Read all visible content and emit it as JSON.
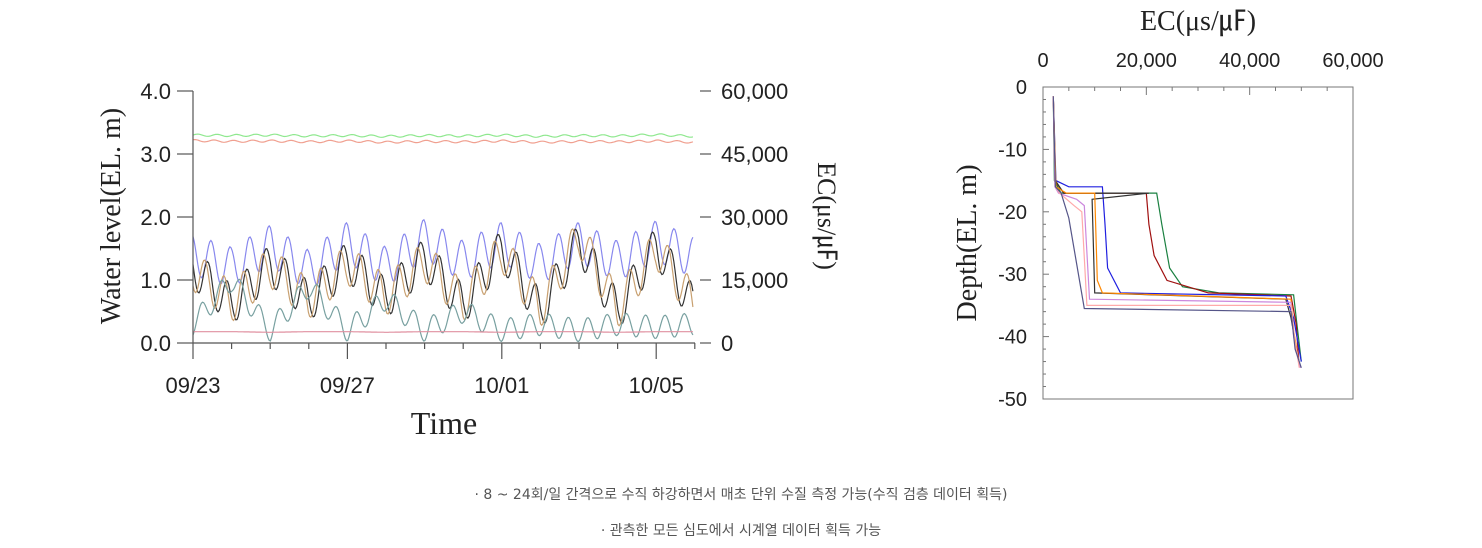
{
  "chart_data": [
    {
      "type": "line",
      "xlabel": "Time",
      "ylabel": "Water level(EL. m)",
      "y2label": "EC(μs/㎌)",
      "x_range": [
        "2023-09-23",
        "2023-10-06"
      ],
      "x_ticks": [
        "09/23",
        "09/27",
        "10/01",
        "10/05"
      ],
      "y_ticks": [
        "0.0",
        "1.0",
        "2.0",
        "3.0",
        "4.0"
      ],
      "y2_ticks": [
        "0",
        "15,000",
        "30,000",
        "45,000",
        "60,000"
      ],
      "ylim": [
        0,
        4
      ],
      "y2lim": [
        0,
        60000
      ],
      "grid": false,
      "series": [
        {
          "color": "#8fe88f",
          "axis": "right",
          "values": [
            49500,
            49400,
            49500,
            49300,
            49400,
            49200,
            49400,
            49300,
            49500,
            49200,
            49400,
            49300,
            49600,
            49200,
            49400
          ]
        },
        {
          "color": "#f0a090",
          "axis": "right",
          "values": [
            48200,
            48000,
            48100,
            47900,
            48100,
            47800,
            48000,
            47900,
            48100,
            47800,
            48000,
            47900,
            48100,
            47800,
            47900
          ]
        },
        {
          "color": "#8888ee",
          "axis": "left",
          "values": [
            1.4,
            1.2,
            1.55,
            1.15,
            1.6,
            1.2,
            1.65,
            1.3,
            1.6,
            1.25,
            1.6,
            1.3,
            1.62,
            1.35,
            1.55
          ]
        },
        {
          "color": "#333333",
          "axis": "left",
          "values": [
            1.2,
            0.6,
            1.25,
            0.65,
            1.3,
            0.7,
            1.35,
            0.6,
            1.5,
            0.5,
            1.6,
            0.5,
            1.55,
            0.55,
            1.4
          ]
        },
        {
          "color": "#c8a070",
          "axis": "left",
          "values": [
            1.15,
            0.65,
            1.2,
            0.7,
            1.25,
            0.75,
            1.3,
            0.65,
            1.45,
            0.55,
            1.7,
            0.55,
            1.5,
            0.6,
            1.35
          ]
        },
        {
          "color": "#78a0a0",
          "axis": "left",
          "values": [
            0.3,
            1.0,
            0.2,
            0.9,
            0.2,
            0.7,
            0.2,
            0.5,
            0.2,
            0.3,
            0.2,
            0.3,
            0.25,
            0.3,
            0.25
          ]
        },
        {
          "color": "#e090a0",
          "axis": "left",
          "values": [
            0.18,
            0.18,
            0.17,
            0.18,
            0.18,
            0.17,
            0.18,
            0.18,
            0.17,
            0.18,
            0.18,
            0.17,
            0.18,
            0.18,
            0.18
          ]
        }
      ]
    },
    {
      "type": "line",
      "xlabel": "EC(μs/㎌)",
      "ylabel": "Depth(EL. m)",
      "x_ticks": [
        "0",
        "20,000",
        "40,000",
        "60,000"
      ],
      "y_ticks": [
        "0",
        "-10",
        "-20",
        "-30",
        "-40",
        "-50"
      ],
      "xlim": [
        0,
        60000
      ],
      "ylim": [
        -50,
        0
      ],
      "grid": false,
      "series": [
        {
          "color": "#1a8040",
          "points": [
            [
              2000,
              -1.5
            ],
            [
              2200,
              -15
            ],
            [
              3500,
              -17
            ],
            [
              22000,
              -17
            ],
            [
              23000,
              -22
            ],
            [
              24500,
              -29
            ],
            [
              27000,
              -32
            ],
            [
              34000,
              -33
            ],
            [
              48500,
              -33.3
            ],
            [
              49000,
              -37
            ],
            [
              50000,
              -44
            ]
          ]
        },
        {
          "color": "#a01010",
          "points": [
            [
              2000,
              -1.5
            ],
            [
              2300,
              -15
            ],
            [
              4000,
              -17
            ],
            [
              20000,
              -17
            ],
            [
              20500,
              -22
            ],
            [
              21500,
              -27
            ],
            [
              24000,
              -31
            ],
            [
              32000,
              -33
            ],
            [
              48000,
              -33.5
            ],
            [
              49000,
              -38
            ],
            [
              49500,
              -44
            ]
          ]
        },
        {
          "color": "#2020e0",
          "points": [
            [
              2000,
              -1.5
            ],
            [
              2500,
              -15
            ],
            [
              5000,
              -16
            ],
            [
              11500,
              -16
            ],
            [
              12000,
              -22
            ],
            [
              12500,
              -29
            ],
            [
              15000,
              -33
            ],
            [
              47000,
              -33.5
            ],
            [
              48500,
              -37
            ],
            [
              50000,
              -44
            ]
          ]
        },
        {
          "color": "#333333",
          "points": [
            [
              2000,
              -1.5
            ],
            [
              2400,
              -15
            ],
            [
              4000,
              -17
            ],
            [
              20500,
              -17
            ],
            [
              9500,
              -18
            ],
            [
              10000,
              -33
            ],
            [
              47000,
              -34
            ],
            [
              48000,
              -37
            ],
            [
              49500,
              -44
            ]
          ]
        },
        {
          "color": "#ff8800",
          "points": [
            [
              2000,
              -1.5
            ],
            [
              2500,
              -16
            ],
            [
              4500,
              -17
            ],
            [
              10000,
              -17
            ],
            [
              10500,
              -31
            ],
            [
              11500,
              -33
            ],
            [
              48000,
              -34
            ],
            [
              48500,
              -39
            ],
            [
              49500,
              -44
            ]
          ]
        },
        {
          "color": "#cc88dd",
          "points": [
            [
              2000,
              -1.5
            ],
            [
              2300,
              -16
            ],
            [
              3000,
              -17
            ],
            [
              6500,
              -18
            ],
            [
              8000,
              -19
            ],
            [
              9000,
              -34
            ],
            [
              48000,
              -34.5
            ],
            [
              48500,
              -40
            ],
            [
              49800,
              -45
            ]
          ]
        },
        {
          "color": "#ffaaaa",
          "points": [
            [
              2000,
              -1.5
            ],
            [
              2400,
              -16
            ],
            [
              3200,
              -17
            ],
            [
              6000,
              -19
            ],
            [
              7500,
              -20
            ],
            [
              8500,
              -35
            ],
            [
              48000,
              -35
            ],
            [
              48800,
              -41
            ],
            [
              49600,
              -45
            ]
          ]
        },
        {
          "color": "#555588",
          "points": [
            [
              2000,
              -1.5
            ],
            [
              2400,
              -16
            ],
            [
              3500,
              -17
            ],
            [
              5000,
              -21
            ],
            [
              8000,
              -35.5
            ],
            [
              48000,
              -36
            ],
            [
              48800,
              -42
            ],
            [
              50000,
              -45
            ]
          ]
        }
      ]
    }
  ],
  "captions": {
    "line1": "· 8 ~ 24회/일 간격으로 수직 하강하면서 매초 단위 수질 측정 가능(수직 검층 데이터 획득)",
    "line2": "· 관측한 모든 심도에서 시계열 데이터 획득 가능"
  }
}
